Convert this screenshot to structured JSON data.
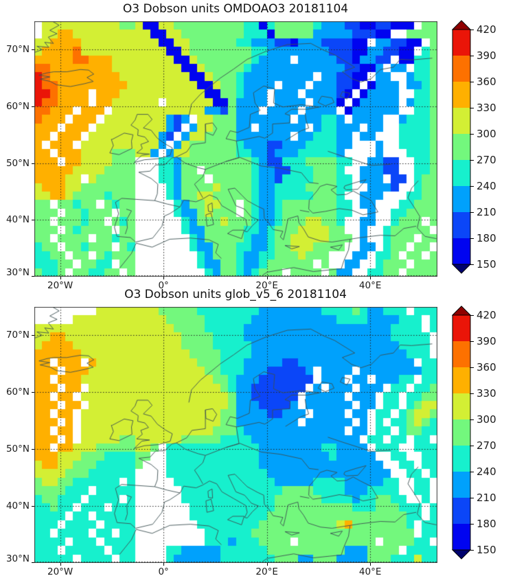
{
  "panels": [
    {
      "id": "omdoao3",
      "title": "O3 Dobson units OMDOAO3 20181104"
    },
    {
      "id": "glob_v5_6",
      "title": "O3 Dobson units glob_v5_6 20181104"
    }
  ],
  "axes": {
    "lon_range": [
      -25,
      53
    ],
    "lat_range": [
      30,
      75
    ],
    "x_tick_labels": [
      "20°W",
      "0°",
      "20°E",
      "40°E"
    ],
    "x_tick_lons": [
      -20,
      0,
      20,
      40
    ],
    "y_tick_labels": [
      "70°N",
      "60°N",
      "50°N",
      "40°N",
      "30°N"
    ],
    "y_tick_lats": [
      70,
      60,
      50,
      40,
      30
    ],
    "gridline_lons": [
      -20,
      0,
      20,
      40
    ],
    "gridline_lats": [
      30,
      40,
      50,
      60,
      70
    ],
    "grid_style": "dotted"
  },
  "colorbar": {
    "tick_labels": [
      "420",
      "390",
      "360",
      "330",
      "300",
      "270",
      "240",
      "210",
      "180",
      "150"
    ],
    "band_colors_top_to_bottom": [
      "#ea1508",
      "#fd7100",
      "#ffb000",
      "#d3ef34",
      "#73f87d",
      "#17f0cd",
      "#00a1fc",
      "#0b46f8",
      "#0004f0"
    ],
    "over_color": "#8f0000",
    "under_color": "#00026e"
  },
  "chart_data": {
    "type": "heatmap",
    "description": "Two gridded maps of total ozone column (Dobson units) over Europe / North Atlantic for 2018-11-04; top = OMI OMDOAO3 satellite swaths, bottom = glob_v5_6 analysis. Grid encoding: each character is one 1.5°x1.5° cell, row 0 = 75N, col 0 = 25W; digit d = value band [150+30d , 180+30d] DU; '.' = no data (white swath gap).",
    "lon_range": [
      -25,
      53
    ],
    "lat_range": [
      30,
      75
    ],
    "value_min": 150,
    "value_max": 420,
    "band_size": 30,
    "bands": [
      {
        "index": 0,
        "range": [
          150,
          180
        ],
        "color": "#0004f0"
      },
      {
        "index": 1,
        "range": [
          180,
          210
        ],
        "color": "#0b46f8"
      },
      {
        "index": 2,
        "range": [
          210,
          240
        ],
        "color": "#00a1fc"
      },
      {
        "index": 3,
        "range": [
          240,
          270
        ],
        "color": "#17f0cd"
      },
      {
        "index": 4,
        "range": [
          270,
          300
        ],
        "color": "#73f87d"
      },
      {
        "index": 5,
        "range": [
          300,
          330
        ],
        "color": "#d3ef34"
      },
      {
        "index": 6,
        "range": [
          330,
          360
        ],
        "color": "#ffb000"
      },
      {
        "index": 7,
        "range": [
          360,
          390
        ],
        "color": "#fd7100"
      },
      {
        "index": 8,
        "range": [
          390,
          420
        ],
        "color": "#ea1508"
      }
    ],
    "maps": [
      {
        "id": "omdoao3",
        "title": "O3 Dobson units OMDOAO3 20181104",
        "grid": [
          ".5555555555445005544444444433034444432221100110 00.44",
          ".55665555555555005544444444333044444222 2211100..4444",
          "55666655555555550055444444332221102221 11100.221100.4",
          "5666675555555555500544444444332222222211100221100.34",
          "66666776665555555500544444443222 2.222221102211.00334",
          "77666666665555555550054444432222222222 2211002.22.334",
          "87666666666555555555005444322222222 2.221100.22..2334",
          "8776666666665555555550054432222.222.222110.0222.2234",
          "8876666.666555555555550044 3222.222.222210.02222..334",
          "8776666.66555555.5555550042222.2222.2220.022222.2334",
          "77666.666.5555555555552214222.2222.2222.0222222..334",
          "7666.666.55555555212.554442222222.222332.2222..23334",
          "666.666.55555555521.25544422.222222.233222.22..33334",
          "66.666.55555555521.25544442222222.2233322.22...33334",
          "6.666.55555555552.254444443222112223333 22...2..33334",
          "66.6665555444552.2554444443322122233333 2....2...3334",
          "666.665555444...33244444444432113334444 33..2211..334",
          "6666655554444...33244.44444432211333444 3..22211..334",
          "666655.544444...332444.4444432213333444 33.222.11.344",
          "5666554444444....3244445444432233334444 33..2221..344",
          "5566544443444....3244554444432233333444 3..222...3344",
          "44.44344.4344.....32445544.43223444444433.22...33444",
          "444.443444.44.....32245444.43223444444433..2..334444",
          "44.444344.434......324445444322344455443..22..3444.4",
          "444.434444.44......322444443323444555544..2..344444.",
          "44.4444.44344.......324444432234455555444.2..3444.44",
          "344.443444.43.......32244433223445554444..22.344.44.",
          "3344.44.43444........32444322334445444...22.334.44.4",
          "33344.4433.44........322443223444444.4..22..3444.444",
          "4334.443344.4.........3244323444.4444.422..3344.4444"
        ]
      },
      {
        "id": "glob_v5_6",
        "title": "O3 Dobson units glob_v5_6 20181104",
        "grid": [
          "........555555554444433333333222222223333 4322333.333",
          ".....5555555555554444433333322222222222333322 22333.33",
          "5555555555555555554444333332222222222222222222 3333.3",
          "5566555555555555555444433332222222222222222222 33333",
          "5666655555555555555444433333222222222222222222 23333",
          "6666665555555555555544443333222222222222222222 22333",
          "66.666.65555555555555444333222221122222222222 2222.33",
          "666.66655555555555555544333222111112.2222.2222222233",
          "66.666555555555555555554432221111111.222.22.22233.33",
          "666.66.555555555555555554 3221111111.2.222.222.33.334",
          "66.66.5555555555555555555422111111.22222.222.33.3344",
          "666.66.5555555555555555554222111 12.222222.22.33.3455",
          "66.66.55555555555555555544222211222.2222.22.33.34554",
          "666.6.555555555555555555442222222 2.222222.2.3.334543",
          "66.66.5555555555555555544432222222222222.22.33.34433",
          "666.6.555554455555544444333322222222222 222.33.33.33.",
          "66.6655544444554.3333333333332222222233 2222.333..333",
          "666555444333344..33333333333322222222232222 2..33..33",
          "56655444333334...3333333333332222222222222222..33.33",
          "5555444333333....333333333333322222222 22222222..33.3",
          "45544333333.3.....333333333333322222333 32222233..33.",
          "4444333.33333......33333333333334444333322233 33..33",
          "344333.3333.3......33333333333344444433332 334433..3",
          "33433.333.333.......3333333333344444444443334443 33.3",
          "3333.33.33333.......333333333344444444444444444433.3",
          "333.3333.3333........33333333444444444456444444 43.33",
          "33.3333.33.33.........3333334444444444444444444 44.33",
          "3333.333.3333.........33323334444.4444444444.444433.",
          "333.33333.333....332222233333344444444442224444.3333",
          "33333.3333.33....322222233333334442244422224443 33533"
        ]
      }
    ]
  }
}
